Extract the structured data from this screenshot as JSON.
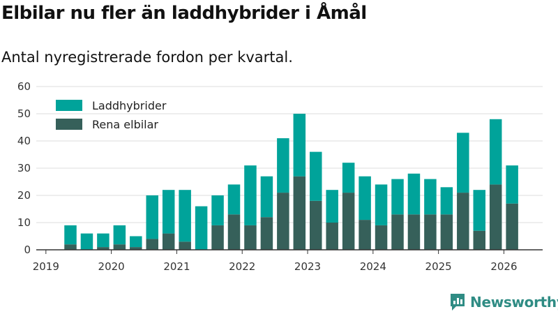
{
  "title": "Elbilar nu fler än laddhybrider i Åmål",
  "subtitle": "Antal nyregistrerade fordon per kvartal.",
  "brand": "Newsworthy",
  "colors": {
    "plugin_hybrid": "#00a39a",
    "electric": "#36605a",
    "grid": "#dddddd",
    "axis": "#333333"
  },
  "chart_data": {
    "type": "bar",
    "stacked": true,
    "categories": [
      "2019 Q2",
      "2019 Q3",
      "2019 Q4",
      "2020 Q1",
      "2020 Q2",
      "2020 Q3",
      "2020 Q4",
      "2021 Q1",
      "2021 Q2",
      "2021 Q3",
      "2021 Q4",
      "2022 Q1",
      "2022 Q2",
      "2022 Q3",
      "2022 Q4",
      "2023 Q1",
      "2023 Q2",
      "2023 Q3",
      "2023 Q4",
      "2024 Q1",
      "2024 Q2",
      "2024 Q3",
      "2024 Q4",
      "2025 Q1",
      "2025 Q2",
      "2025 Q3",
      "2025 Q4",
      "2026 Q1"
    ],
    "x_start_year": 2019,
    "x_ticks": [
      "2019",
      "2020",
      "2021",
      "2022",
      "2023",
      "2024",
      "2025",
      "2026"
    ],
    "y_ticks": [
      0,
      10,
      20,
      30,
      40,
      50,
      60
    ],
    "ylim": [
      0,
      60
    ],
    "legend_position": "top-left",
    "series": [
      {
        "name": "Rena elbilar",
        "color": "#36605a",
        "values": [
          2,
          0,
          1,
          2,
          1,
          4,
          6,
          3,
          0,
          9,
          13,
          9,
          12,
          21,
          27,
          18,
          10,
          21,
          11,
          9,
          13,
          13,
          13,
          13,
          21,
          7,
          24,
          17
        ]
      },
      {
        "name": "Laddhybrider",
        "color": "#00a39a",
        "values": [
          7,
          6,
          5,
          7,
          4,
          16,
          16,
          19,
          16,
          11,
          11,
          22,
          15,
          20,
          23,
          18,
          12,
          11,
          16,
          15,
          13,
          15,
          13,
          10,
          22,
          15,
          24,
          14
        ]
      }
    ],
    "legend": [
      "Laddhybrider",
      "Rena elbilar"
    ]
  }
}
